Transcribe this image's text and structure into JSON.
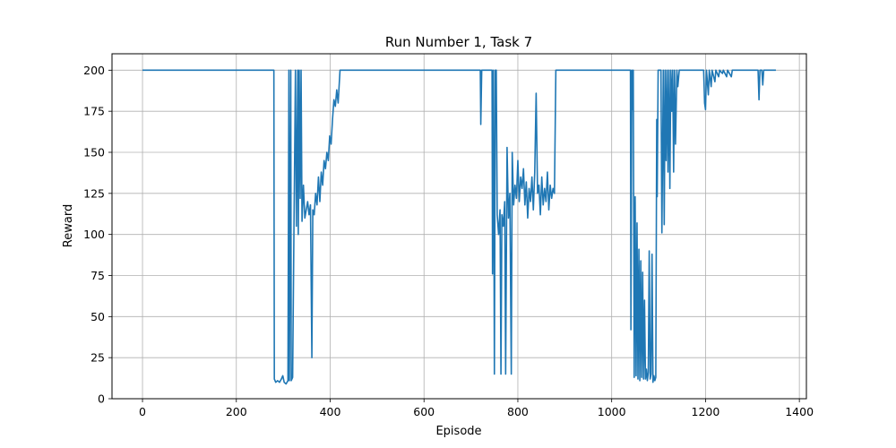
{
  "chart_data": {
    "type": "line",
    "title": "Run Number 1, Task 7",
    "xlabel": "Episode",
    "ylabel": "Reward",
    "xlim": [
      -65,
      1415
    ],
    "ylim": [
      0,
      210
    ],
    "xticks": [
      0,
      200,
      400,
      600,
      800,
      1000,
      1200,
      1400
    ],
    "yticks": [
      0,
      25,
      50,
      75,
      100,
      125,
      150,
      175,
      200
    ],
    "grid": true,
    "line_color": "#1f77b4",
    "series": [
      {
        "name": "",
        "points": [
          [
            0,
            200
          ],
          [
            280,
            200
          ],
          [
            281,
            12
          ],
          [
            284,
            10
          ],
          [
            288,
            11
          ],
          [
            292,
            10
          ],
          [
            296,
            12
          ],
          [
            299,
            14
          ],
          [
            302,
            10
          ],
          [
            306,
            9
          ],
          [
            310,
            11
          ],
          [
            312,
            200
          ],
          [
            313,
            11
          ],
          [
            316,
            200
          ],
          [
            317,
            11
          ],
          [
            320,
            13
          ],
          [
            323,
            110
          ],
          [
            326,
            200
          ],
          [
            328,
            105
          ],
          [
            331,
            200
          ],
          [
            332,
            100
          ],
          [
            334,
            200
          ],
          [
            336,
            122
          ],
          [
            338,
            200
          ],
          [
            340,
            108
          ],
          [
            343,
            130
          ],
          [
            346,
            110
          ],
          [
            349,
            115
          ],
          [
            352,
            120
          ],
          [
            355,
            112
          ],
          [
            358,
            118
          ],
          [
            361,
            25
          ],
          [
            363,
            115
          ],
          [
            366,
            112
          ],
          [
            369,
            125
          ],
          [
            372,
            118
          ],
          [
            375,
            135
          ],
          [
            378,
            120
          ],
          [
            381,
            138
          ],
          [
            384,
            130
          ],
          [
            387,
            145
          ],
          [
            390,
            140
          ],
          [
            393,
            150
          ],
          [
            396,
            145
          ],
          [
            399,
            160
          ],
          [
            402,
            155
          ],
          [
            405,
            170
          ],
          [
            408,
            182
          ],
          [
            411,
            178
          ],
          [
            414,
            188
          ],
          [
            417,
            180
          ],
          [
            421,
            200
          ],
          [
            720,
            200
          ],
          [
            721,
            167
          ],
          [
            723,
            200
          ],
          [
            745,
            200
          ],
          [
            746,
            76
          ],
          [
            748,
            200
          ],
          [
            750,
            15
          ],
          [
            752,
            200
          ],
          [
            754,
            200
          ],
          [
            756,
            112
          ],
          [
            759,
            100
          ],
          [
            762,
            115
          ],
          [
            764,
            15
          ],
          [
            766,
            112
          ],
          [
            769,
            105
          ],
          [
            772,
            120
          ],
          [
            774,
            15
          ],
          [
            777,
            153
          ],
          [
            780,
            110
          ],
          [
            783,
            125
          ],
          [
            786,
            15
          ],
          [
            788,
            150
          ],
          [
            791,
            118
          ],
          [
            794,
            130
          ],
          [
            797,
            122
          ],
          [
            800,
            145
          ],
          [
            803,
            120
          ],
          [
            806,
            135
          ],
          [
            809,
            128
          ],
          [
            812,
            140
          ],
          [
            815,
            118
          ],
          [
            818,
            132
          ],
          [
            821,
            110
          ],
          [
            824,
            128
          ],
          [
            827,
            120
          ],
          [
            830,
            135
          ],
          [
            833,
            115
          ],
          [
            836,
            138
          ],
          [
            839,
            186
          ],
          [
            842,
            125
          ],
          [
            845,
            130
          ],
          [
            848,
            112
          ],
          [
            851,
            135
          ],
          [
            854,
            118
          ],
          [
            857,
            128
          ],
          [
            860,
            120
          ],
          [
            863,
            138
          ],
          [
            866,
            115
          ],
          [
            869,
            130
          ],
          [
            872,
            122
          ],
          [
            875,
            128
          ],
          [
            878,
            125
          ],
          [
            881,
            200
          ],
          [
            1040,
            200
          ],
          [
            1041,
            42
          ],
          [
            1043,
            200
          ],
          [
            1044,
            176
          ],
          [
            1046,
            200
          ],
          [
            1048,
            13
          ],
          [
            1050,
            123
          ],
          [
            1052,
            14
          ],
          [
            1054,
            107
          ],
          [
            1056,
            12
          ],
          [
            1058,
            91
          ],
          [
            1060,
            11
          ],
          [
            1062,
            84
          ],
          [
            1064,
            13
          ],
          [
            1066,
            77
          ],
          [
            1068,
            12
          ],
          [
            1070,
            60
          ],
          [
            1072,
            12
          ],
          [
            1074,
            18
          ],
          [
            1076,
            11
          ],
          [
            1078,
            16
          ],
          [
            1080,
            90
          ],
          [
            1082,
            12
          ],
          [
            1084,
            15
          ],
          [
            1086,
            88
          ],
          [
            1088,
            10
          ],
          [
            1090,
            14
          ],
          [
            1092,
            11
          ],
          [
            1094,
            13
          ],
          [
            1096,
            170
          ],
          [
            1097,
            123
          ],
          [
            1099,
            200
          ],
          [
            1105,
            200
          ],
          [
            1107,
            101
          ],
          [
            1110,
            200
          ],
          [
            1112,
            106
          ],
          [
            1114,
            200
          ],
          [
            1116,
            145
          ],
          [
            1118,
            200
          ],
          [
            1120,
            138
          ],
          [
            1122,
            200
          ],
          [
            1124,
            128
          ],
          [
            1126,
            200
          ],
          [
            1128,
            175
          ],
          [
            1130,
            200
          ],
          [
            1132,
            138
          ],
          [
            1134,
            200
          ],
          [
            1136,
            155
          ],
          [
            1139,
            200
          ],
          [
            1141,
            190
          ],
          [
            1144,
            200
          ],
          [
            1196,
            200
          ],
          [
            1198,
            180
          ],
          [
            1200,
            176
          ],
          [
            1202,
            200
          ],
          [
            1206,
            185
          ],
          [
            1208,
            200
          ],
          [
            1212,
            190
          ],
          [
            1214,
            200
          ],
          [
            1220,
            193
          ],
          [
            1222,
            200
          ],
          [
            1228,
            196
          ],
          [
            1230,
            200
          ],
          [
            1236,
            198
          ],
          [
            1238,
            200
          ],
          [
            1245,
            196
          ],
          [
            1247,
            200
          ],
          [
            1255,
            196
          ],
          [
            1257,
            200
          ],
          [
            1262,
            200
          ],
          [
            1300,
            200
          ],
          [
            1312,
            200
          ],
          [
            1314,
            182
          ],
          [
            1316,
            200
          ],
          [
            1320,
            200
          ],
          [
            1322,
            191
          ],
          [
            1324,
            200
          ],
          [
            1350,
            200
          ]
        ]
      }
    ]
  }
}
